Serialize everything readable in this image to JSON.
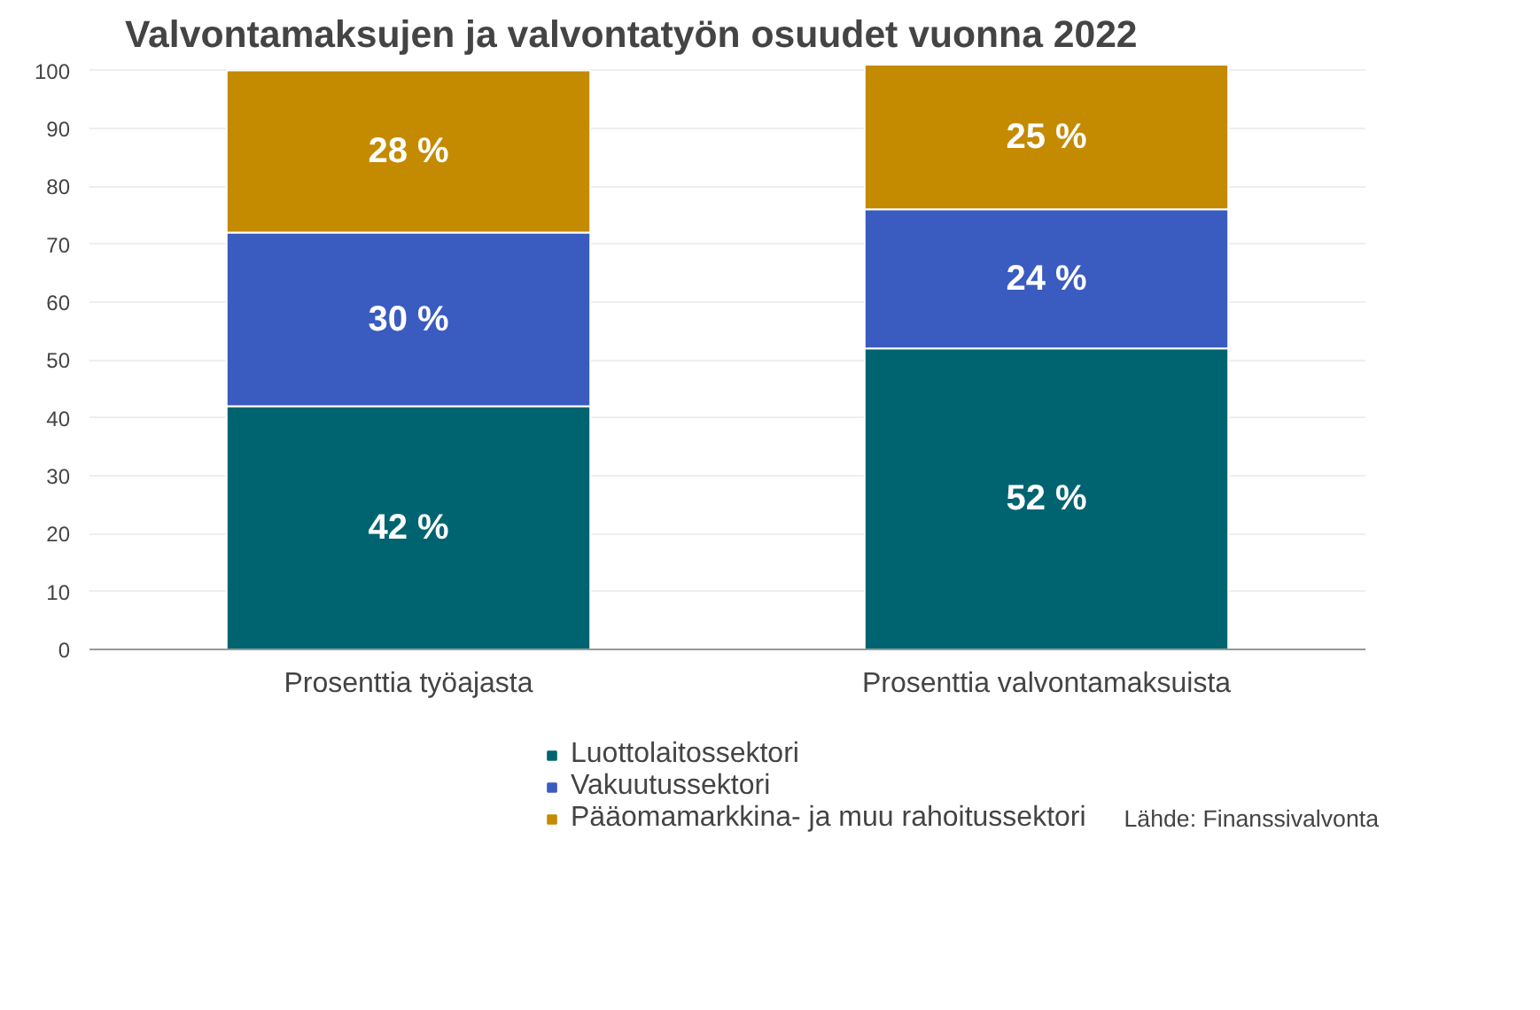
{
  "chart_data": {
    "type": "bar",
    "title": "Valvontamaksujen ja valvontatyön osuudet vuonna 2022",
    "categories": [
      "Prosenttia työajasta",
      "Prosenttia valvontamaksuista"
    ],
    "stacked": true,
    "series": [
      {
        "name": "Luottolaitossektori",
        "color": "#006470",
        "values": [
          42,
          52
        ],
        "value_labels": [
          "42 %",
          "52 %"
        ]
      },
      {
        "name": "Vakuutussektori",
        "color": "#3a5bc0",
        "values": [
          30,
          24
        ],
        "value_labels": [
          "30 %",
          "24 %"
        ]
      },
      {
        "name": "Pääomamarkkina- ja muu rahoitussektori",
        "color": "#c48a00",
        "values": [
          28,
          25
        ],
        "value_labels": [
          "28 %",
          "25 %"
        ]
      }
    ],
    "ylim": [
      0,
      101
    ],
    "yticks": [
      0,
      10,
      20,
      30,
      40,
      50,
      60,
      70,
      80,
      90,
      100
    ],
    "grid": "y",
    "legend": "bottom",
    "annotations": [
      "Lähde: Finanssivalvonta"
    ]
  }
}
